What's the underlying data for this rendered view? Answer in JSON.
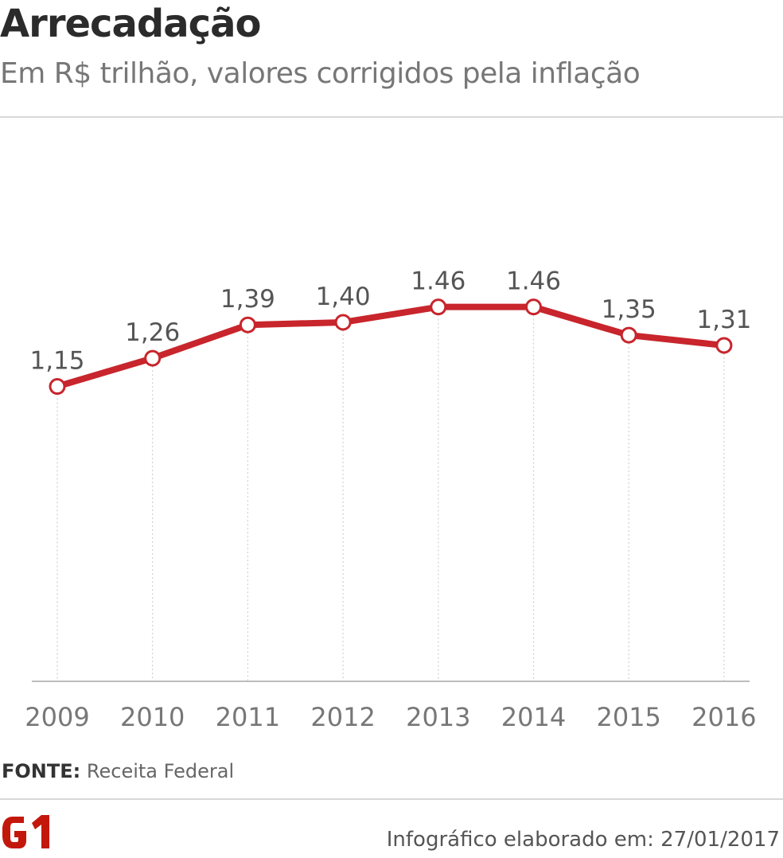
{
  "header": {
    "title": "Arrecadação",
    "subtitle": "Em R$ trilhão, valores corrigidos pela inflação"
  },
  "chart_data": {
    "type": "line",
    "title": "Arrecadação",
    "subtitle": "Em R$ trilhão, valores corrigidos pela inflação",
    "x": [
      "2009",
      "2010",
      "2011",
      "2012",
      "2013",
      "2014",
      "2015",
      "2016"
    ],
    "series": [
      {
        "values": [
          1.15,
          1.26,
          1.39,
          1.4,
          1.46,
          1.46,
          1.35,
          1.31
        ],
        "labels": [
          "1,15",
          "1,26",
          "1,39",
          "1,40",
          "1.46",
          "1.46",
          "1,35",
          "1,31"
        ]
      }
    ],
    "ylim": [
      0,
      1.85
    ],
    "grid": "vertical dotted lines at each year",
    "colors": {
      "line": "#c8252c",
      "marker_fill": "#ffffff",
      "tick_text": "#777777",
      "label_text": "#555555"
    }
  },
  "footer": {
    "source_label": "FONTE:",
    "source_text": "Receita Federal",
    "logo_text": "G1",
    "credit": "Infográfico elaborado em: 27/01/2017"
  },
  "colors": {
    "brand": "#c4170c",
    "title": "#2b2b2b",
    "subtitle": "#777777"
  }
}
